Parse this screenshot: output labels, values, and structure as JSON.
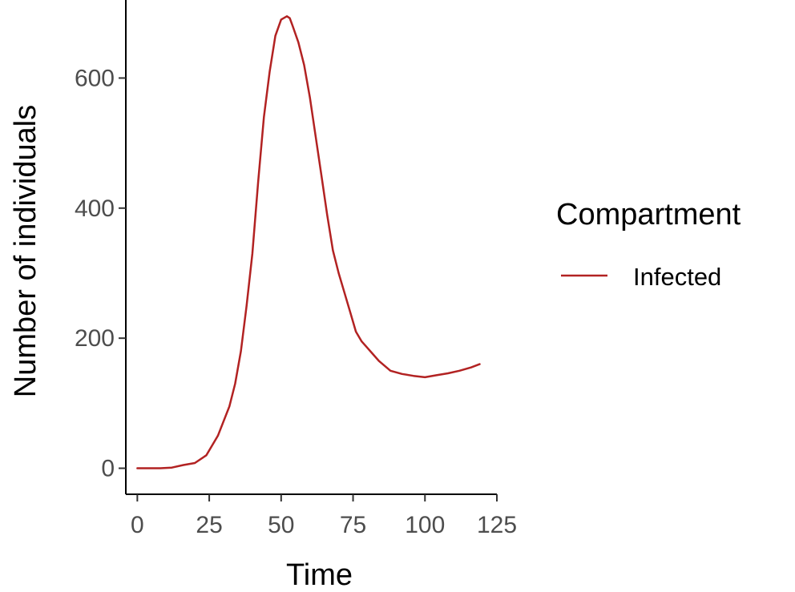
{
  "chart_data": {
    "type": "line",
    "xlabel": "Time",
    "ylabel": "Number of individuals",
    "xlim": [
      -4,
      125
    ],
    "ylim": [
      -40,
      720
    ],
    "xticks": [
      0,
      25,
      50,
      75,
      100,
      125
    ],
    "yticks": [
      0,
      200,
      400,
      600
    ],
    "grid": false,
    "legend": {
      "title": "Compartment",
      "position": "right"
    },
    "series": [
      {
        "name": "Infected",
        "color": "#b22222",
        "x": [
          0,
          4,
          8,
          12,
          16,
          20,
          24,
          28,
          32,
          34,
          36,
          38,
          40,
          42,
          44,
          46,
          48,
          50,
          52,
          53,
          54,
          56,
          58,
          60,
          62,
          64,
          66,
          68,
          70,
          72,
          74,
          76,
          78,
          80,
          82,
          84,
          88,
          92,
          96,
          100,
          104,
          108,
          112,
          116,
          119
        ],
        "y": [
          0,
          0,
          0,
          1,
          5,
          8,
          20,
          50,
          95,
          130,
          180,
          250,
          330,
          440,
          540,
          610,
          665,
          690,
          695,
          692,
          680,
          655,
          620,
          570,
          510,
          450,
          390,
          335,
          300,
          270,
          240,
          210,
          195,
          185,
          175,
          165,
          150,
          145,
          142,
          140,
          143,
          146,
          150,
          155,
          160
        ]
      }
    ]
  }
}
